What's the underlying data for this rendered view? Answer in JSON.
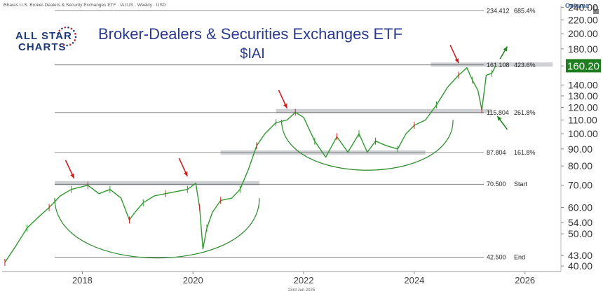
{
  "header": {
    "source_line": "iShares U.S. Broker-Dealers & Security Exchanges ETF · IAI:US · Weekly · USD",
    "provider": "Optuma",
    "logo_line1": "ALL STAR",
    "logo_line2": "CHARTS"
  },
  "footer": {
    "date": "23rd Jun 2025"
  },
  "price_badge": {
    "value": "160.20",
    "color": "#1e7d1e"
  },
  "chart_data": {
    "type": "line",
    "title": "Broker-Dealers & Securities Exchanges ETF",
    "subtitle": "$IAI",
    "scale": "log",
    "ylim": [
      38.5,
      243
    ],
    "xlim": [
      2016.55,
      2026.65
    ],
    "x_ticks": [
      "2018",
      "2020",
      "2022",
      "2024",
      "2026"
    ],
    "y_ticks": [
      "40.00",
      "43.00",
      "50.00",
      "54.00",
      "60.00",
      "70.00",
      "80.00",
      "90.00",
      "100.00",
      "110.00",
      "120.00",
      "130.00",
      "140.00",
      "160.00",
      "180.00",
      "200.00",
      "220.00",
      "240.00"
    ],
    "levels": [
      {
        "price": "234.412",
        "pct": "685.4%"
      },
      {
        "price": "161.108",
        "pct": "423.6%"
      },
      {
        "price": "115.804",
        "pct": "261.8%"
      },
      {
        "price": "87.804",
        "pct": "161.8%"
      },
      {
        "price": "70.500",
        "pct": "Start"
      },
      {
        "price": "42.500",
        "pct": "End"
      }
    ],
    "resistance_zones": [
      {
        "y": 71,
        "x_start": 2017.5,
        "x_end": 2021.2
      },
      {
        "y": 87.8,
        "x_start": 2020.5,
        "x_end": 2024.2
      },
      {
        "y": 117,
        "x_start": 2021.5,
        "x_end": 2025.4
      },
      {
        "y": 161.5,
        "x_start": 2024.3,
        "x_end": 2026.5
      }
    ],
    "price_series": {
      "x": [
        2016.6,
        2016.8,
        2017.0,
        2017.2,
        2017.4,
        2017.6,
        2017.8,
        2017.95,
        2018.1,
        2018.3,
        2018.5,
        2018.7,
        2018.85,
        2018.95,
        2019.1,
        2019.3,
        2019.5,
        2019.7,
        2019.9,
        2020.05,
        2020.12,
        2020.18,
        2020.25,
        2020.35,
        2020.5,
        2020.7,
        2020.85,
        2021.0,
        2021.15,
        2021.3,
        2021.5,
        2021.7,
        2021.85,
        2022.0,
        2022.2,
        2022.4,
        2022.6,
        2022.8,
        2023.0,
        2023.15,
        2023.3,
        2023.5,
        2023.7,
        2023.85,
        2024.0,
        2024.2,
        2024.4,
        2024.6,
        2024.8,
        2024.95,
        2025.05,
        2025.15,
        2025.22,
        2025.3,
        2025.4,
        2025.47
      ],
      "y": [
        41,
        46,
        52,
        56,
        60,
        65,
        68,
        69,
        70,
        66,
        68,
        64,
        55,
        58,
        62,
        65,
        66,
        67,
        68,
        71,
        60,
        45,
        52,
        58,
        63,
        64,
        68,
        78,
        92,
        100,
        108,
        110,
        116,
        112,
        95,
        85,
        98,
        88,
        100,
        88,
        95,
        92,
        90,
        100,
        106,
        110,
        122,
        138,
        150,
        158,
        145,
        135,
        118,
        150,
        152,
        160.2
      ]
    },
    "red_arrows": [
      {
        "x": 2017.85,
        "y": 72
      },
      {
        "x": 2019.9,
        "y": 73
      },
      {
        "x": 2021.7,
        "y": 117
      },
      {
        "x": 2024.8,
        "y": 160
      }
    ],
    "green_arrows": [
      {
        "x1": 2025.55,
        "y1": 168,
        "x2": 2025.68,
        "y2": 183
      },
      {
        "x1": 2025.68,
        "y1": 103,
        "x2": 2025.5,
        "y2": 113
      }
    ],
    "arcs": [
      {
        "x_start": 2017.5,
        "x_end": 2021.2,
        "y_top": 64,
        "y_bottom": 42.5
      },
      {
        "x_start": 2021.6,
        "x_end": 2024.7,
        "y_top": 110,
        "y_bottom": 78
      }
    ]
  }
}
